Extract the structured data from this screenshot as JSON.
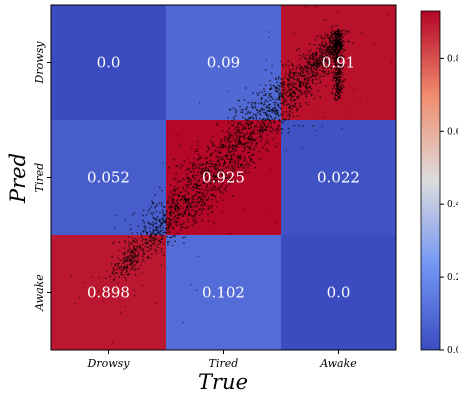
{
  "chart_data": {
    "type": "heatmap",
    "xlabel": "True",
    "ylabel": "Pred",
    "x_categories": [
      "Drowsy",
      "Tired",
      "Awake"
    ],
    "y_categories": [
      "Drowsy",
      "Tired",
      "Awake"
    ],
    "values": [
      [
        0.0,
        0.09,
        0.91
      ],
      [
        0.052,
        0.925,
        0.022
      ],
      [
        0.898,
        0.102,
        0.0
      ]
    ],
    "value_labels": [
      [
        "0.0",
        "0.09",
        "0.91"
      ],
      [
        "0.052",
        "0.925",
        "0.022"
      ],
      [
        "0.898",
        "0.102",
        "0.0"
      ]
    ],
    "colormap": "coolwarm",
    "colorbar": {
      "range": [
        0.0,
        0.93
      ],
      "ticks": [
        "0.0",
        "0.2",
        "0.4",
        "0.6",
        "0.8"
      ],
      "tick_values": [
        0.0,
        0.2,
        0.4,
        0.6,
        0.8
      ]
    },
    "scatter_overlay": {
      "color": "#000000",
      "description_points": "dense diagonal band of small points from Awake/Drowsy toward Drowsy/Awake"
    }
  }
}
